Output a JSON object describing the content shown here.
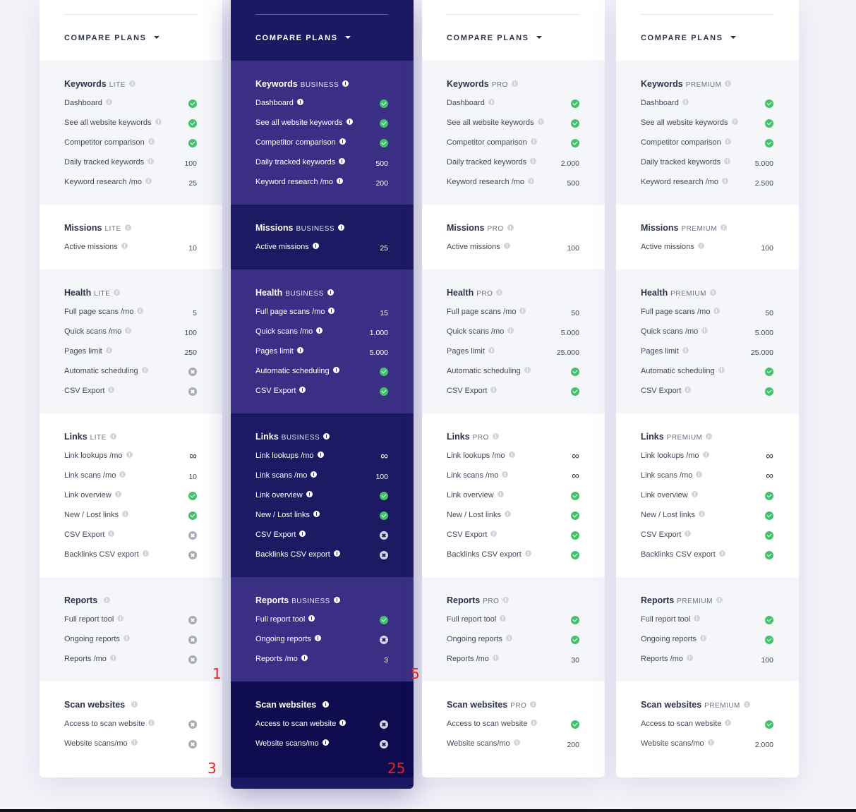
{
  "compare_label": "COMPARE PLANS",
  "plans": [
    {
      "theme": "light",
      "sections": [
        {
          "title": "Keywords",
          "tier": "LITE",
          "rows": [
            {
              "label": "Dashboard",
              "value": "check"
            },
            {
              "label": "See all website keywords",
              "value": "check"
            },
            {
              "label": "Competitor comparison",
              "value": "check"
            },
            {
              "label": "Daily tracked keywords",
              "value": "100"
            },
            {
              "label": "Keyword research /mo",
              "value": "25"
            }
          ]
        },
        {
          "title": "Missions",
          "tier": "LITE",
          "rows": [
            {
              "label": "Active missions",
              "value": "10"
            }
          ]
        },
        {
          "title": "Health",
          "tier": "LITE",
          "rows": [
            {
              "label": "Full page scans /mo",
              "value": "5"
            },
            {
              "label": "Quick scans /mo",
              "value": "100"
            },
            {
              "label": "Pages limit",
              "value": "250"
            },
            {
              "label": "Automatic scheduling",
              "value": "cross"
            },
            {
              "label": "CSV Export",
              "value": "cross"
            }
          ]
        },
        {
          "title": "Links",
          "tier": "LITE",
          "rows": [
            {
              "label": "Link lookups /mo",
              "value": "infinity"
            },
            {
              "label": "Link scans /mo",
              "value": "10"
            },
            {
              "label": "Link overview",
              "value": "check"
            },
            {
              "label": "New / Lost links",
              "value": "check"
            },
            {
              "label": "CSV Export",
              "value": "cross"
            },
            {
              "label": "Backlinks CSV export",
              "value": "cross"
            }
          ]
        },
        {
          "title": "Reports",
          "tier": "",
          "rows": [
            {
              "label": "Full report tool",
              "value": "cross"
            },
            {
              "label": "Ongoing reports",
              "value": "cross"
            },
            {
              "label": "Reports /mo",
              "value": "cross"
            }
          ]
        },
        {
          "title": "Scan websites",
          "tier": "",
          "rows": [
            {
              "label": "Access to scan website",
              "value": "cross"
            },
            {
              "label": "Website scans/mo",
              "value": "cross"
            }
          ]
        }
      ]
    },
    {
      "theme": "dark",
      "sections": [
        {
          "title": "Keywords",
          "tier": "BUSINESS",
          "rows": [
            {
              "label": "Dashboard",
              "value": "check"
            },
            {
              "label": "See all website keywords",
              "value": "check"
            },
            {
              "label": "Competitor comparison",
              "value": "check"
            },
            {
              "label": "Daily tracked keywords",
              "value": "500"
            },
            {
              "label": "Keyword research /mo",
              "value": "200"
            }
          ]
        },
        {
          "title": "Missions",
          "tier": "BUSINESS",
          "rows": [
            {
              "label": "Active missions",
              "value": "25"
            }
          ]
        },
        {
          "title": "Health",
          "tier": "BUSINESS",
          "rows": [
            {
              "label": "Full page scans /mo",
              "value": "15"
            },
            {
              "label": "Quick scans /mo",
              "value": "1.000"
            },
            {
              "label": "Pages limit",
              "value": "5.000"
            },
            {
              "label": "Automatic scheduling",
              "value": "check"
            },
            {
              "label": "CSV Export",
              "value": "check"
            }
          ]
        },
        {
          "title": "Links",
          "tier": "BUSINESS",
          "rows": [
            {
              "label": "Link lookups /mo",
              "value": "infinity"
            },
            {
              "label": "Link scans /mo",
              "value": "100"
            },
            {
              "label": "Link overview",
              "value": "check"
            },
            {
              "label": "New / Lost links",
              "value": "check"
            },
            {
              "label": "CSV Export",
              "value": "cross"
            },
            {
              "label": "Backlinks CSV export",
              "value": "cross"
            }
          ]
        },
        {
          "title": "Reports",
          "tier": "BUSINESS",
          "rows": [
            {
              "label": "Full report tool",
              "value": "check"
            },
            {
              "label": "Ongoing reports",
              "value": "cross"
            },
            {
              "label": "Reports /mo",
              "value": "3"
            }
          ]
        },
        {
          "title": "Scan websites",
          "tier": "",
          "rows": [
            {
              "label": "Access to scan website",
              "value": "cross"
            },
            {
              "label": "Website scans/mo",
              "value": "cross"
            }
          ]
        }
      ]
    },
    {
      "theme": "light",
      "sections": [
        {
          "title": "Keywords",
          "tier": "PRO",
          "rows": [
            {
              "label": "Dashboard",
              "value": "check"
            },
            {
              "label": "See all website keywords",
              "value": "check"
            },
            {
              "label": "Competitor comparison",
              "value": "check"
            },
            {
              "label": "Daily tracked keywords",
              "value": "2.000"
            },
            {
              "label": "Keyword research /mo",
              "value": "500"
            }
          ]
        },
        {
          "title": "Missions",
          "tier": "PRO",
          "rows": [
            {
              "label": "Active missions",
              "value": "100"
            }
          ]
        },
        {
          "title": "Health",
          "tier": "PRO",
          "rows": [
            {
              "label": "Full page scans /mo",
              "value": "50"
            },
            {
              "label": "Quick scans /mo",
              "value": "5.000"
            },
            {
              "label": "Pages limit",
              "value": "25.000"
            },
            {
              "label": "Automatic scheduling",
              "value": "check"
            },
            {
              "label": "CSV Export",
              "value": "check"
            }
          ]
        },
        {
          "title": "Links",
          "tier": "PRO",
          "rows": [
            {
              "label": "Link lookups /mo",
              "value": "infinity"
            },
            {
              "label": "Link scans /mo",
              "value": "infinity"
            },
            {
              "label": "Link overview",
              "value": "check"
            },
            {
              "label": "New / Lost links",
              "value": "check"
            },
            {
              "label": "CSV Export",
              "value": "check"
            },
            {
              "label": "Backlinks CSV export",
              "value": "check"
            }
          ]
        },
        {
          "title": "Reports",
          "tier": "PRO",
          "rows": [
            {
              "label": "Full report tool",
              "value": "check"
            },
            {
              "label": "Ongoing reports",
              "value": "check"
            },
            {
              "label": "Reports /mo",
              "value": "30"
            }
          ]
        },
        {
          "title": "Scan websites",
          "tier": "PRO",
          "rows": [
            {
              "label": "Access to scan website",
              "value": "check"
            },
            {
              "label": "Website scans/mo",
              "value": "200"
            }
          ]
        }
      ]
    },
    {
      "theme": "light",
      "sections": [
        {
          "title": "Keywords",
          "tier": "PREMIUM",
          "rows": [
            {
              "label": "Dashboard",
              "value": "check"
            },
            {
              "label": "See all website keywords",
              "value": "check"
            },
            {
              "label": "Competitor comparison",
              "value": "check"
            },
            {
              "label": "Daily tracked keywords",
              "value": "5.000"
            },
            {
              "label": "Keyword research /mo",
              "value": "2.500"
            }
          ]
        },
        {
          "title": "Missions",
          "tier": "PREMIUM",
          "rows": [
            {
              "label": "Active missions",
              "value": "100"
            }
          ]
        },
        {
          "title": "Health",
          "tier": "PREMIUM",
          "rows": [
            {
              "label": "Full page scans /mo",
              "value": "50"
            },
            {
              "label": "Quick scans /mo",
              "value": "5.000"
            },
            {
              "label": "Pages limit",
              "value": "25.000"
            },
            {
              "label": "Automatic scheduling",
              "value": "check"
            },
            {
              "label": "CSV Export",
              "value": "check"
            }
          ]
        },
        {
          "title": "Links",
          "tier": "PREMIUM",
          "rows": [
            {
              "label": "Link lookups /mo",
              "value": "infinity"
            },
            {
              "label": "Link scans /mo",
              "value": "infinity"
            },
            {
              "label": "Link overview",
              "value": "check"
            },
            {
              "label": "New / Lost links",
              "value": "check"
            },
            {
              "label": "CSV Export",
              "value": "check"
            },
            {
              "label": "Backlinks CSV export",
              "value": "check"
            }
          ]
        },
        {
          "title": "Reports",
          "tier": "PREMIUM",
          "rows": [
            {
              "label": "Full report tool",
              "value": "check"
            },
            {
              "label": "Ongoing reports",
              "value": "check"
            },
            {
              "label": "Reports /mo",
              "value": "100"
            }
          ]
        },
        {
          "title": "Scan websites",
          "tier": "PREMIUM",
          "rows": [
            {
              "label": "Access to scan website",
              "value": "check"
            },
            {
              "label": "Website scans/mo",
              "value": "2.000"
            }
          ]
        }
      ]
    }
  ],
  "annotations": [
    "1",
    "5",
    "3",
    "25"
  ],
  "colors": {
    "check": "#44c16a",
    "cross": "#a7abb8",
    "accent_dark": "#1b1961",
    "marker": "#e5241f"
  }
}
